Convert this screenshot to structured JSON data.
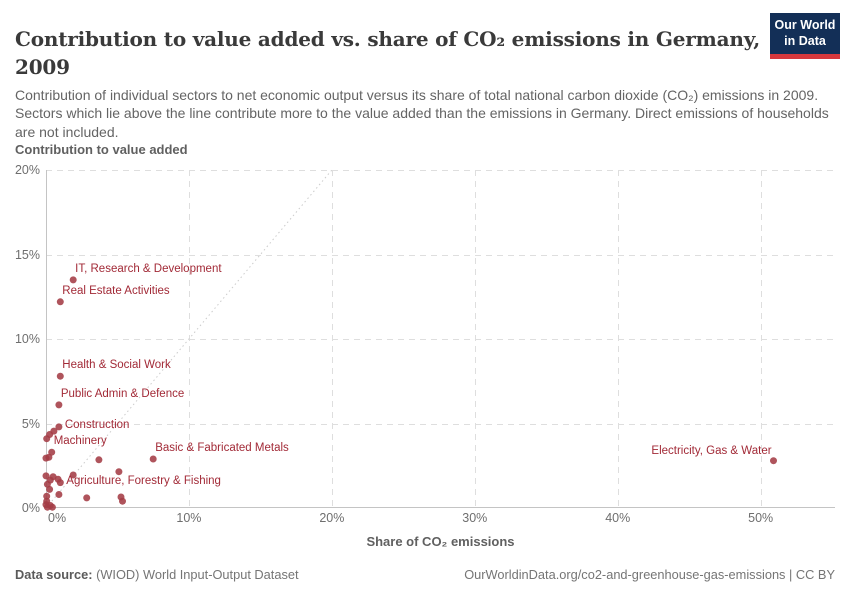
{
  "header": {
    "title_lines": [
      "Contribution to value added vs. share of CO₂ emissions in Germany,",
      "2009"
    ],
    "subtitle": "Contribution of individual sectors to net economic output versus its share of total national carbon dioxide (CO₂) emissions in 2009. Sectors which lie above the line contribute more to the value added than the emissions in Germany. Direct emissions of households are not included."
  },
  "logo": {
    "line1": "Our World",
    "line2": "in Data",
    "bg_color": "#132f57",
    "stripe_color": "#d7383c"
  },
  "chart_data": {
    "type": "scatter",
    "xlabel": "Share of CO₂ emissions",
    "ylabel": "Contribution to value added",
    "xlim": [
      0,
      55.2
    ],
    "ylim": [
      0,
      20
    ],
    "x_ticks": [
      0,
      10,
      20,
      30,
      40,
      50
    ],
    "y_ticks": [
      0,
      5,
      10,
      15,
      20
    ],
    "tick_suffix": "%",
    "grid": "dashed",
    "legend": "none",
    "diagonal_line": {
      "from": [
        0,
        0
      ],
      "to": [
        20,
        20
      ],
      "style": "dotted"
    },
    "point_color": "#a43c46",
    "label_color": "#a22a37",
    "points": [
      {
        "label": "IT, Research & Development",
        "x": 1.9,
        "y": 13.5,
        "label_pos": "above-right"
      },
      {
        "label": "Real Estate Activities",
        "x": 1.0,
        "y": 12.2,
        "label_pos": "above-right"
      },
      {
        "label": "Health & Social Work",
        "x": 1.0,
        "y": 7.8,
        "label_pos": "above-right"
      },
      {
        "label": "Public Admin & Defence",
        "x": 0.9,
        "y": 6.1,
        "label_pos": "above-right"
      },
      {
        "label": "Construction",
        "x": 0.9,
        "y": 4.8,
        "label_pos": "right"
      },
      {
        "label": "Machinery",
        "x": 0.4,
        "y": 3.3,
        "label_pos": "above-right"
      },
      {
        "label": "Basic & Fabricated Metals",
        "x": 7.5,
        "y": 2.9,
        "label_pos": "above-right"
      },
      {
        "label": "Agriculture, Forestry & Fishing",
        "x": 1.0,
        "y": 1.5,
        "label_pos": "right"
      },
      {
        "label": "Electricity, Gas & Water",
        "x": 50.9,
        "y": 2.8,
        "label_pos": "above-left"
      },
      {
        "x": 0.55,
        "y": 4.55
      },
      {
        "x": 0.25,
        "y": 4.35
      },
      {
        "x": 0.05,
        "y": 4.1
      },
      {
        "x": 0.2,
        "y": 3.0
      },
      {
        "x": 0.0,
        "y": 2.95
      },
      {
        "x": 3.7,
        "y": 2.85
      },
      {
        "x": 5.1,
        "y": 2.15
      },
      {
        "x": 1.9,
        "y": 1.95
      },
      {
        "x": 0.0,
        "y": 1.9
      },
      {
        "x": 0.5,
        "y": 1.85
      },
      {
        "x": 0.85,
        "y": 1.7
      },
      {
        "x": 0.3,
        "y": 1.65
      },
      {
        "x": 0.1,
        "y": 1.4
      },
      {
        "x": 0.25,
        "y": 1.1
      },
      {
        "x": 0.9,
        "y": 0.8
      },
      {
        "x": 0.05,
        "y": 0.7
      },
      {
        "x": 5.25,
        "y": 0.65
      },
      {
        "x": 2.85,
        "y": 0.6
      },
      {
        "x": 5.35,
        "y": 0.4
      },
      {
        "x": 0.05,
        "y": 0.4
      },
      {
        "x": 0.0,
        "y": 0.2
      },
      {
        "x": 0.3,
        "y": 0.15
      },
      {
        "x": 0.1,
        "y": 0.05
      },
      {
        "x": 0.45,
        "y": 0.05
      }
    ]
  },
  "footer": {
    "source_label": "Data source:",
    "source_value": " (WIOD) World Input-Output Dataset",
    "right_text": "OurWorldinData.org/co2-and-greenhouse-gas-emissions | CC BY"
  }
}
